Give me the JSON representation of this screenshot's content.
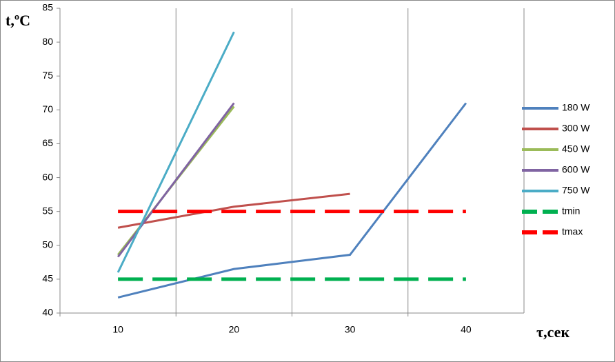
{
  "chart_data": {
    "type": "line",
    "y_label": "t,ºC",
    "x_label": "τ,сек",
    "categories": [
      "10",
      "20",
      "30",
      "40"
    ],
    "series": [
      {
        "name": "180 W",
        "color": "#4f81bd",
        "values": [
          42.3,
          46.5,
          48.6,
          71
        ]
      },
      {
        "name": "300 W",
        "color": "#c0504d",
        "values": [
          52.6,
          55.7,
          57.6,
          null
        ]
      },
      {
        "name": "450 W",
        "color": "#9bbb59",
        "values": [
          48.6,
          70.5,
          null,
          null
        ]
      },
      {
        "name": "600 W",
        "color": "#8064a2",
        "values": [
          48.3,
          71,
          null,
          null
        ]
      },
      {
        "name": "750 W",
        "color": "#4bacc6",
        "values": [
          46,
          81.5,
          null,
          null
        ]
      },
      {
        "name": "tmin",
        "color": "#00b050",
        "dashed": true,
        "values": [
          45,
          45,
          45,
          45
        ]
      },
      {
        "name": "tmax",
        "color": "#ff0000",
        "dashed": true,
        "values": [
          55,
          55,
          55,
          55
        ]
      }
    ],
    "ylim": [
      40,
      85
    ],
    "yticks": [
      40,
      45,
      50,
      55,
      60,
      65,
      70,
      75,
      80,
      85
    ],
    "legend": "right"
  }
}
